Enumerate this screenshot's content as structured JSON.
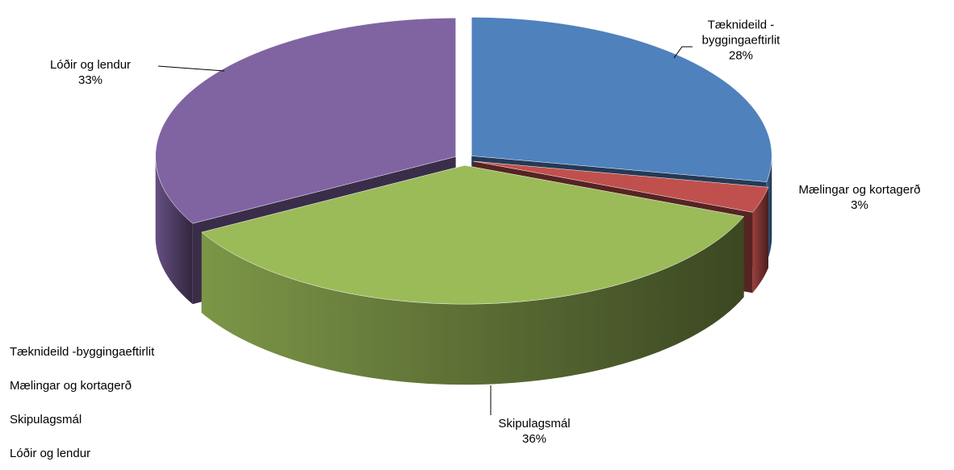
{
  "chart_data": {
    "type": "pie",
    "categories": [
      "Tæknideild -byggingaeftirlit",
      "Mælingar og kortagerð",
      "Skipulagsmál",
      "Lóðir og lendur"
    ],
    "values": [
      28,
      3,
      36,
      33
    ],
    "value_labels": [
      "28%",
      "3%",
      "36%",
      "33%"
    ],
    "colors": [
      "#4f81bd",
      "#c0504d",
      "#9bbb59",
      "#8064a2"
    ],
    "legend": "bottom-left"
  }
}
